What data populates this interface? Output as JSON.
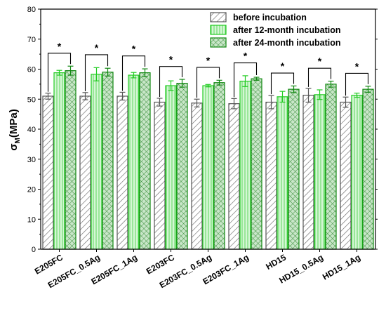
{
  "chart_data": {
    "type": "bar",
    "ylabel": "σ",
    "ylabel_sub": "M",
    "ylabel_unit": "(MPa)",
    "ylim": [
      0,
      80
    ],
    "yticks": [
      0,
      10,
      20,
      30,
      40,
      50,
      60,
      70,
      80
    ],
    "ytick_labels": [
      "0",
      "10",
      "20",
      "30",
      "40",
      "50",
      "60",
      "70",
      "80"
    ],
    "categories": [
      "E205FC",
      "E205FC_0.5Ag",
      "E205FC_1Ag",
      "E203FC",
      "E203FC_0.5Ag",
      "E203FC_1Ag",
      "HD15",
      "HD15_0.5Ag",
      "HD15_1Ag"
    ],
    "series": [
      {
        "name": "before incubation",
        "values": [
          51.0,
          51.0,
          51.0,
          49.0,
          48.7,
          48.5,
          49.0,
          51.3,
          49.0
        ],
        "errors": [
          1.0,
          1.2,
          1.3,
          1.3,
          1.3,
          1.7,
          2.2,
          2.3,
          1.7
        ],
        "color": "#555555",
        "fill": "#ffffff",
        "pattern": "diagonal"
      },
      {
        "name": "after 12-month incubation",
        "values": [
          58.8,
          58.3,
          58.0,
          54.5,
          54.5,
          56.0,
          50.8,
          51.5,
          51.3
        ],
        "errors": [
          0.8,
          2.2,
          0.9,
          1.6,
          0.4,
          1.8,
          1.8,
          1.6,
          0.7
        ],
        "color": "#22cc22",
        "fill": "#ccf5cc",
        "pattern": "vertical"
      },
      {
        "name": "after 24-month incubation",
        "values": [
          59.5,
          59.0,
          58.8,
          55.3,
          55.5,
          56.8,
          53.3,
          55.0,
          53.3
        ],
        "errors": [
          1.5,
          1.3,
          1.3,
          1.3,
          0.8,
          0.5,
          1.1,
          1.0,
          1.0
        ],
        "color": "#118811",
        "fill": "#bbddbb",
        "pattern": "crosshatch"
      }
    ],
    "significance_marker": "*",
    "legend_position": "top-right",
    "grid": false
  },
  "colors": {
    "axis": "#000000",
    "before": "#555555",
    "after12": "#22cc22",
    "after24": "#118811"
  }
}
